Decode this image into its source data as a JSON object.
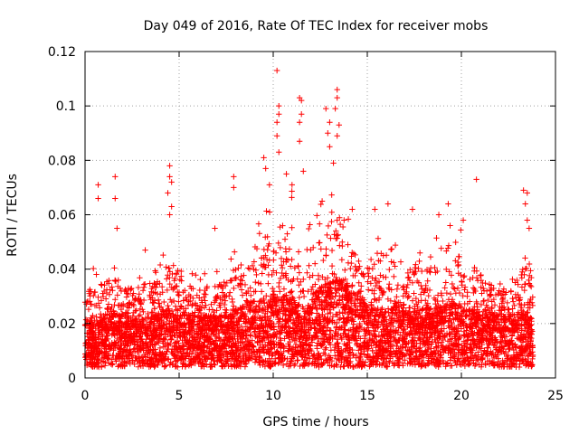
{
  "chart_data": {
    "type": "scatter",
    "title": "Day 049 of 2016, Rate Of TEC Index for receiver mobs",
    "xlabel": "GPS time / hours",
    "ylabel": "ROTI / TECUs",
    "xlim": [
      0,
      25
    ],
    "ylim": [
      0,
      0.12
    ],
    "grid": true,
    "xticks": [
      {
        "value": 0,
        "label": "0"
      },
      {
        "value": 5,
        "label": "5"
      },
      {
        "value": 10,
        "label": "10"
      },
      {
        "value": 15,
        "label": "15"
      },
      {
        "value": 20,
        "label": "20"
      },
      {
        "value": 25,
        "label": "25"
      }
    ],
    "yticks": [
      {
        "value": 0,
        "label": "0"
      },
      {
        "value": 0.02,
        "label": "0.02"
      },
      {
        "value": 0.04,
        "label": "0.04"
      },
      {
        "value": 0.06,
        "label": "0.06"
      },
      {
        "value": 0.08,
        "label": "0.08"
      },
      {
        "value": 0.1,
        "label": "0.1"
      },
      {
        "value": 0.12,
        "label": "0.12"
      }
    ],
    "marker": "+",
    "series": [
      {
        "name": "ROTI",
        "color": "#ff0000",
        "envelope": {
          "x": [
            0.0,
            0.5,
            1.0,
            1.5,
            2.0,
            2.5,
            3.0,
            3.5,
            4.0,
            4.5,
            5.0,
            5.5,
            6.0,
            6.5,
            7.0,
            7.5,
            8.0,
            8.5,
            9.0,
            9.5,
            10.0,
            10.5,
            11.0,
            11.5,
            12.0,
            12.5,
            13.0,
            13.5,
            14.0,
            14.5,
            15.0,
            15.5,
            16.0,
            16.5,
            17.0,
            17.5,
            18.0,
            18.5,
            19.0,
            19.5,
            20.0,
            20.5,
            21.0,
            21.5,
            22.0,
            22.5,
            23.0,
            23.5,
            23.8
          ],
          "typical": [
            0.015,
            0.016,
            0.017,
            0.018,
            0.017,
            0.016,
            0.016,
            0.017,
            0.018,
            0.019,
            0.019,
            0.018,
            0.017,
            0.017,
            0.017,
            0.017,
            0.019,
            0.02,
            0.021,
            0.022,
            0.023,
            0.022,
            0.024,
            0.015,
            0.022,
            0.025,
            0.026,
            0.027,
            0.025,
            0.022,
            0.02,
            0.019,
            0.019,
            0.02,
            0.02,
            0.019,
            0.019,
            0.019,
            0.02,
            0.021,
            0.02,
            0.019,
            0.018,
            0.018,
            0.017,
            0.017,
            0.018,
            0.018,
            0.017
          ],
          "max": [
            0.04,
            0.042,
            0.04,
            0.045,
            0.04,
            0.038,
            0.04,
            0.042,
            0.045,
            0.05,
            0.048,
            0.04,
            0.038,
            0.04,
            0.04,
            0.042,
            0.05,
            0.05,
            0.055,
            0.06,
            0.065,
            0.06,
            0.07,
            0.04,
            0.06,
            0.065,
            0.07,
            0.07,
            0.06,
            0.05,
            0.048,
            0.05,
            0.06,
            0.05,
            0.045,
            0.05,
            0.045,
            0.05,
            0.055,
            0.05,
            0.055,
            0.05,
            0.045,
            0.04,
            0.038,
            0.038,
            0.045,
            0.05,
            0.045
          ]
        },
        "outliers": [
          {
            "x": 0.7,
            "y": 0.071
          },
          {
            "x": 0.7,
            "y": 0.066
          },
          {
            "x": 1.6,
            "y": 0.074
          },
          {
            "x": 1.6,
            "y": 0.066
          },
          {
            "x": 1.7,
            "y": 0.055
          },
          {
            "x": 3.2,
            "y": 0.047
          },
          {
            "x": 4.5,
            "y": 0.078
          },
          {
            "x": 4.5,
            "y": 0.074
          },
          {
            "x": 4.6,
            "y": 0.072
          },
          {
            "x": 4.4,
            "y": 0.068
          },
          {
            "x": 4.6,
            "y": 0.063
          },
          {
            "x": 4.5,
            "y": 0.06
          },
          {
            "x": 6.9,
            "y": 0.055
          },
          {
            "x": 7.9,
            "y": 0.074
          },
          {
            "x": 7.9,
            "y": 0.07
          },
          {
            "x": 9.5,
            "y": 0.081
          },
          {
            "x": 9.6,
            "y": 0.077
          },
          {
            "x": 9.8,
            "y": 0.071
          },
          {
            "x": 10.2,
            "y": 0.113
          },
          {
            "x": 10.3,
            "y": 0.1
          },
          {
            "x": 10.3,
            "y": 0.097
          },
          {
            "x": 10.2,
            "y": 0.094
          },
          {
            "x": 10.2,
            "y": 0.089
          },
          {
            "x": 10.3,
            "y": 0.083
          },
          {
            "x": 10.7,
            "y": 0.075
          },
          {
            "x": 11.0,
            "y": 0.071
          },
          {
            "x": 11.4,
            "y": 0.103
          },
          {
            "x": 11.5,
            "y": 0.102
          },
          {
            "x": 11.5,
            "y": 0.097
          },
          {
            "x": 11.4,
            "y": 0.094
          },
          {
            "x": 11.4,
            "y": 0.087
          },
          {
            "x": 11.6,
            "y": 0.076
          },
          {
            "x": 12.8,
            "y": 0.099
          },
          {
            "x": 12.9,
            "y": 0.09
          },
          {
            "x": 13.0,
            "y": 0.094
          },
          {
            "x": 13.0,
            "y": 0.085
          },
          {
            "x": 13.4,
            "y": 0.106
          },
          {
            "x": 13.4,
            "y": 0.103
          },
          {
            "x": 13.3,
            "y": 0.099
          },
          {
            "x": 13.5,
            "y": 0.093
          },
          {
            "x": 13.4,
            "y": 0.089
          },
          {
            "x": 13.2,
            "y": 0.079
          },
          {
            "x": 12.6,
            "y": 0.065
          },
          {
            "x": 14.2,
            "y": 0.062
          },
          {
            "x": 15.4,
            "y": 0.062
          },
          {
            "x": 16.1,
            "y": 0.064
          },
          {
            "x": 17.4,
            "y": 0.062
          },
          {
            "x": 18.8,
            "y": 0.06
          },
          {
            "x": 19.3,
            "y": 0.064
          },
          {
            "x": 19.4,
            "y": 0.056
          },
          {
            "x": 20.8,
            "y": 0.073
          },
          {
            "x": 20.1,
            "y": 0.058
          },
          {
            "x": 23.3,
            "y": 0.069
          },
          {
            "x": 23.5,
            "y": 0.068
          },
          {
            "x": 23.4,
            "y": 0.064
          },
          {
            "x": 23.5,
            "y": 0.058
          },
          {
            "x": 23.6,
            "y": 0.055
          }
        ]
      }
    ]
  }
}
